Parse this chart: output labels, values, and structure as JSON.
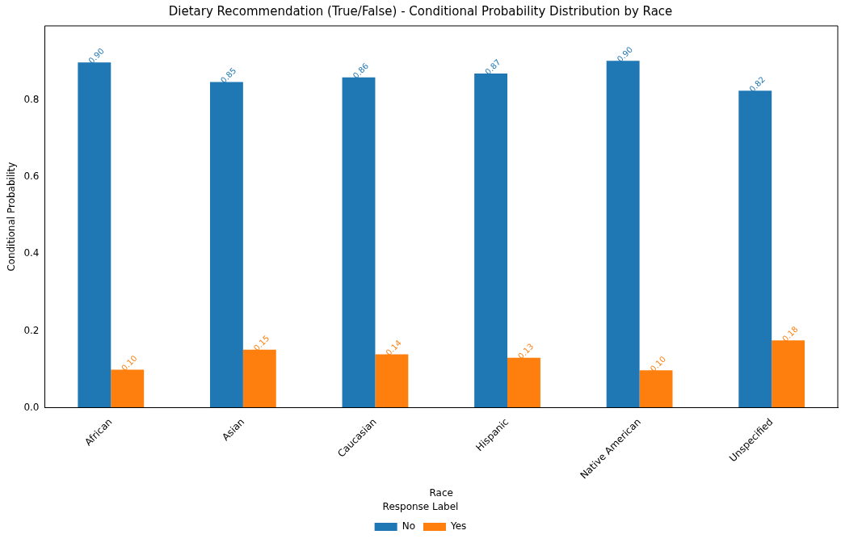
{
  "chart_data": {
    "type": "bar",
    "title": "Dietary Recommendation (True/False) - Conditional Probability Distribution by Race",
    "xlabel": "Race",
    "ylabel": "Conditional Probability",
    "legend_title": "Response Label",
    "categories": [
      "African",
      "Asian",
      "Caucasian",
      "Hispanic",
      "Native American",
      "Unspecified"
    ],
    "series": [
      {
        "name": "No",
        "color": "#1f77b4",
        "values": [
          0.899,
          0.848,
          0.86,
          0.87,
          0.903,
          0.825
        ],
        "value_labels": [
          "0.90",
          "0.85",
          "0.86",
          "0.87",
          "0.90",
          "0.82"
        ]
      },
      {
        "name": "Yes",
        "color": "#ff7f0e",
        "values": [
          0.099,
          0.151,
          0.139,
          0.13,
          0.097,
          0.175
        ],
        "value_labels": [
          "0.10",
          "0.15",
          "0.14",
          "0.13",
          "0.10",
          "0.18"
        ]
      }
    ],
    "ylim": [
      0,
      0.994
    ],
    "yticks": [
      {
        "value": 0,
        "label": "0.0"
      },
      {
        "value": 0.2,
        "label": "0.2"
      },
      {
        "value": 0.4,
        "label": "0.4"
      },
      {
        "value": 0.6,
        "label": "0.6"
      },
      {
        "value": 0.8,
        "label": "0.8"
      }
    ],
    "grid": false,
    "legend": "bottom"
  }
}
